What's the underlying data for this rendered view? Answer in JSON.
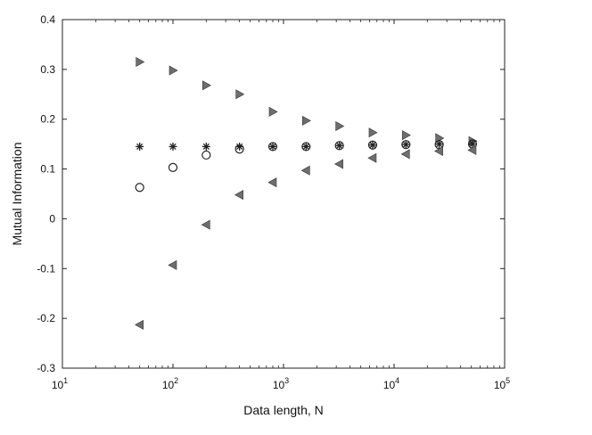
{
  "chart_data": {
    "type": "scatter",
    "title": "",
    "xlabel": "Data length, N",
    "ylabel": "Mutual Information",
    "xscale": "log",
    "xlim": [
      10,
      100000
    ],
    "ylim": [
      -0.3,
      0.4
    ],
    "grid": false,
    "legend": "none",
    "x_ticks": [
      {
        "base": "10",
        "exp": "1"
      },
      {
        "base": "10",
        "exp": "2"
      },
      {
        "base": "10",
        "exp": "3"
      },
      {
        "base": "10",
        "exp": "4"
      },
      {
        "base": "10",
        "exp": "5"
      }
    ],
    "y_ticks": [
      "-0.3",
      "-0.2",
      "-0.1",
      "0",
      "0.1",
      "0.2",
      "0.3",
      "0.4"
    ],
    "x": [
      50,
      100,
      200,
      400,
      800,
      1600,
      3200,
      6400,
      12800,
      25600,
      51200
    ],
    "series": [
      {
        "marker": "triangle-right",
        "color": "#6e6e6e",
        "values": [
          0.315,
          0.298,
          0.268,
          0.25,
          0.215,
          0.197,
          0.186,
          0.173,
          0.168,
          0.162,
          0.156
        ]
      },
      {
        "marker": "asterisk",
        "color": "#222222",
        "values": [
          0.145,
          0.145,
          0.145,
          0.145,
          0.145,
          0.145,
          0.147,
          0.148,
          0.149,
          0.15,
          0.15
        ]
      },
      {
        "marker": "circle",
        "color": "#222222",
        "values": [
          0.063,
          0.103,
          0.128,
          0.14,
          0.145,
          0.145,
          0.147,
          0.148,
          0.149,
          0.149,
          0.15
        ]
      },
      {
        "marker": "triangle-left",
        "color": "#6e6e6e",
        "values": [
          -0.213,
          -0.093,
          -0.012,
          0.048,
          0.073,
          0.097,
          0.11,
          0.122,
          0.13,
          0.136,
          0.138
        ]
      }
    ]
  }
}
